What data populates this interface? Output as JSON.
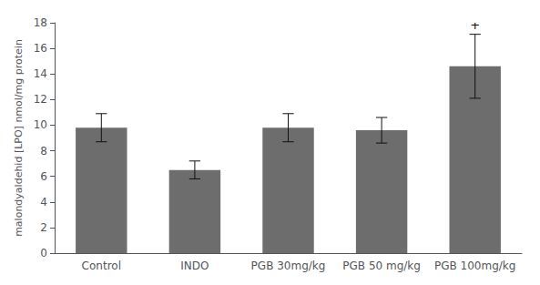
{
  "chart_data": {
    "type": "bar",
    "ylabel": "malondyaldehid [LPO] nmol/mg protein",
    "categories": [
      "Control",
      "INDO",
      "PGB 30mg/kg",
      "PGB 50 mg/kg",
      "PGB 100mg/kg"
    ],
    "values": [
      9.8,
      6.5,
      9.8,
      9.6,
      14.6
    ],
    "errors": [
      1.1,
      0.7,
      1.1,
      1.0,
      2.5
    ],
    "color": "#6d6d6d",
    "ylim": [
      0,
      18
    ],
    "yticks": [
      0,
      2,
      4,
      6,
      8,
      10,
      12,
      14,
      16,
      18
    ],
    "grid": false,
    "annotations": [
      {
        "text": "+",
        "category": "PGB 100mg/kg"
      }
    ]
  }
}
